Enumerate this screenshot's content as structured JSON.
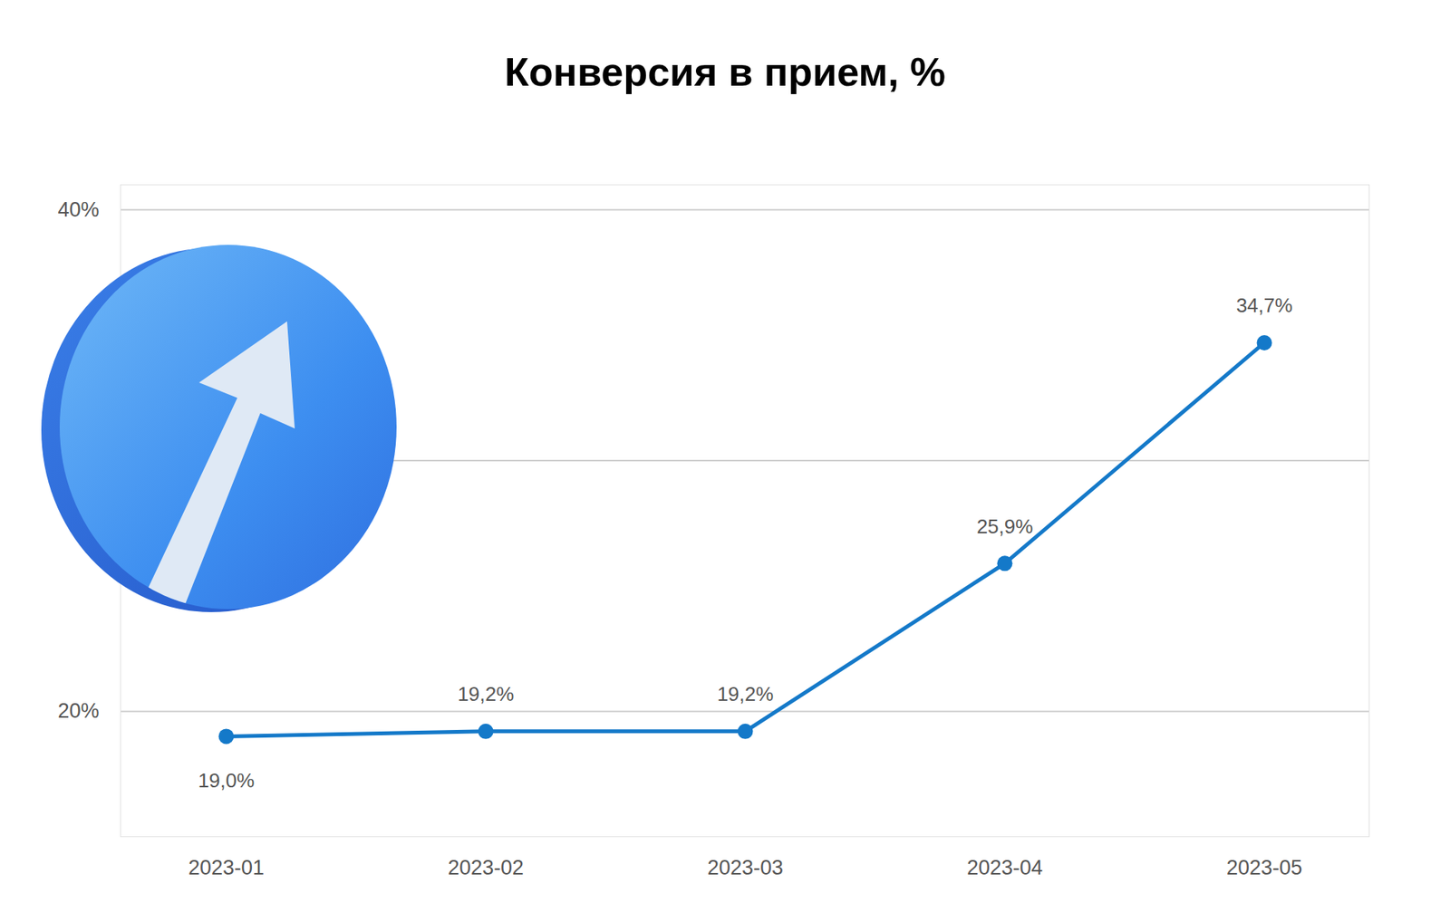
{
  "chart_data": {
    "type": "line",
    "title": "Конверсия в прием, %",
    "categories": [
      "2023-01",
      "2023-02",
      "2023-03",
      "2023-04",
      "2023-05"
    ],
    "values": [
      19.0,
      19.2,
      19.2,
      25.9,
      34.7
    ],
    "value_labels": [
      "19,0%",
      "19,2%",
      "19,2%",
      "25,9%",
      "34,7%"
    ],
    "color": "#1479c9",
    "ylim": [
      15,
      41
    ],
    "yticks": [
      {
        "value": 20,
        "label": "20%"
      },
      {
        "value": 30,
        "label": null
      },
      {
        "value": 40,
        "label": "40%"
      }
    ],
    "grid": true,
    "data_labels": true,
    "marker": "circle"
  }
}
